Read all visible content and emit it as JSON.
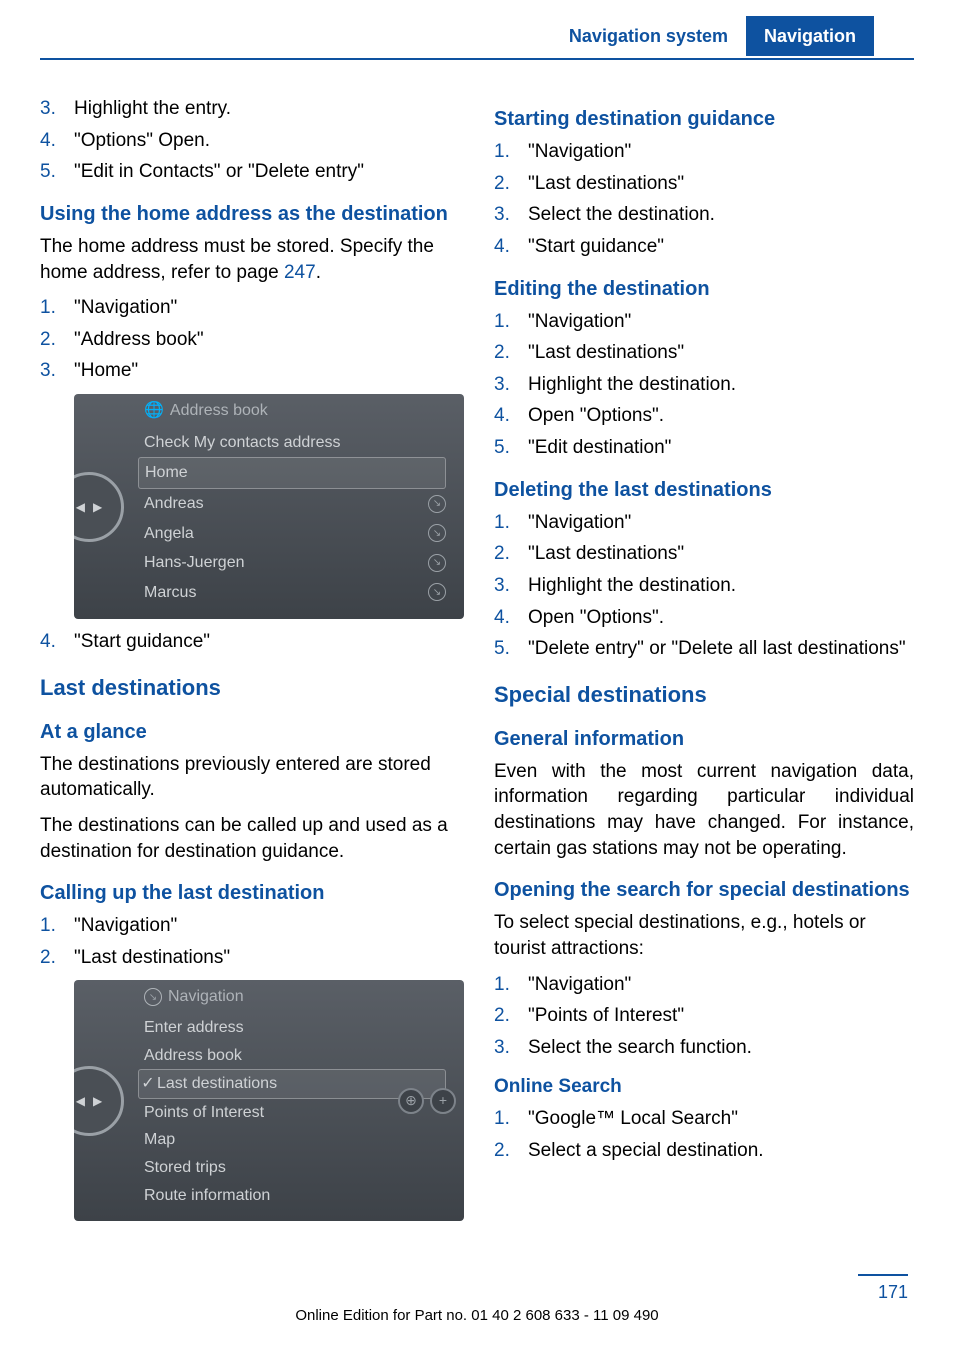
{
  "header": {
    "left_tab": "Navigation system",
    "right_tab": "Navigation"
  },
  "colors": {
    "accent": "#0e52a0"
  },
  "left": {
    "top_steps": [
      {
        "n": "3.",
        "t": "Highlight the entry."
      },
      {
        "n": "4.",
        "t": "\"Options\" Open."
      },
      {
        "n": "5.",
        "t": "\"Edit in Contacts\" or \"Delete entry\""
      }
    ],
    "home_heading": "Using the home address as the destination",
    "home_para_a": "The home address must be stored. Specify the home address, refer to page ",
    "home_page_link": "247",
    "home_para_b": ".",
    "home_steps": [
      {
        "n": "1.",
        "t": "\"Navigation\""
      },
      {
        "n": "2.",
        "t": "\"Address book\""
      },
      {
        "n": "3.",
        "t": "\"Home\""
      }
    ],
    "addrbook_shot": {
      "title": "Address book",
      "rows": [
        {
          "label": "Check My contacts address",
          "icon": false,
          "sel": false
        },
        {
          "label": "Home",
          "icon": false,
          "sel": true
        },
        {
          "label": "Andreas",
          "icon": true,
          "sel": false
        },
        {
          "label": "Angela",
          "icon": true,
          "sel": false
        },
        {
          "label": "Hans-Juergen",
          "icon": true,
          "sel": false
        },
        {
          "label": "Marcus",
          "icon": true,
          "sel": false
        }
      ]
    },
    "home_step4": {
      "n": "4.",
      "t": "\"Start guidance\""
    },
    "last_heading": "Last destinations",
    "glance_heading": "At a glance",
    "glance_p1": "The destinations previously entered are stored automatically.",
    "glance_p2": "The destinations can be called up and used as a destination for destination guidance.",
    "calling_heading": "Calling up the last destination",
    "calling_steps": [
      {
        "n": "1.",
        "t": "\"Navigation\""
      },
      {
        "n": "2.",
        "t": "\"Last destinations\""
      }
    ],
    "nav_shot": {
      "title": "Navigation",
      "rows": [
        {
          "label": "Enter address",
          "sel": false
        },
        {
          "label": "Address book",
          "sel": false
        },
        {
          "label": "Last destinations",
          "sel": true,
          "check": true
        },
        {
          "label": "Points of Interest",
          "sel": false
        },
        {
          "label": "Map",
          "sel": false
        },
        {
          "label": "Stored trips",
          "sel": false
        },
        {
          "label": "Route information",
          "sel": false
        }
      ]
    }
  },
  "right": {
    "start_heading": "Starting destination guidance",
    "start_steps": [
      {
        "n": "1.",
        "t": "\"Navigation\""
      },
      {
        "n": "2.",
        "t": "\"Last destinations\""
      },
      {
        "n": "3.",
        "t": "Select the destination."
      },
      {
        "n": "4.",
        "t": "\"Start guidance\""
      }
    ],
    "edit_heading": "Editing the destination",
    "edit_steps": [
      {
        "n": "1.",
        "t": "\"Navigation\""
      },
      {
        "n": "2.",
        "t": "\"Last destinations\""
      },
      {
        "n": "3.",
        "t": "Highlight the destination."
      },
      {
        "n": "4.",
        "t": "Open \"Options\"."
      },
      {
        "n": "5.",
        "t": "\"Edit destination\""
      }
    ],
    "del_heading": "Deleting the last destinations",
    "del_steps": [
      {
        "n": "1.",
        "t": "\"Navigation\""
      },
      {
        "n": "2.",
        "t": "\"Last destinations\""
      },
      {
        "n": "3.",
        "t": "Highlight the destination."
      },
      {
        "n": "4.",
        "t": "Open \"Options\"."
      },
      {
        "n": "5.",
        "t": "\"Delete entry\" or \"Delete all last destinations\""
      }
    ],
    "special_heading": "Special destinations",
    "general_heading": "General information",
    "general_p": "Even with the most current navigation data, information regarding particular individual destinations may have changed. For instance, certain gas stations may not be operating.",
    "open_heading": "Opening the search for special destinations",
    "open_p": "To select special destinations, e.g., hotels or tourist attractions:",
    "open_steps": [
      {
        "n": "1.",
        "t": "\"Navigation\""
      },
      {
        "n": "2.",
        "t": "\"Points of Interest\""
      },
      {
        "n": "3.",
        "t": "Select the search function."
      }
    ],
    "online_heading": "Online Search",
    "online_steps": [
      {
        "n": "1.",
        "t": "\"Google™ Local Search\""
      },
      {
        "n": "2.",
        "t": "Select a special destination."
      }
    ]
  },
  "footer": {
    "text": "Online Edition for Part no. 01 40 2 608 633 - 11 09 490",
    "page_number": "171"
  }
}
